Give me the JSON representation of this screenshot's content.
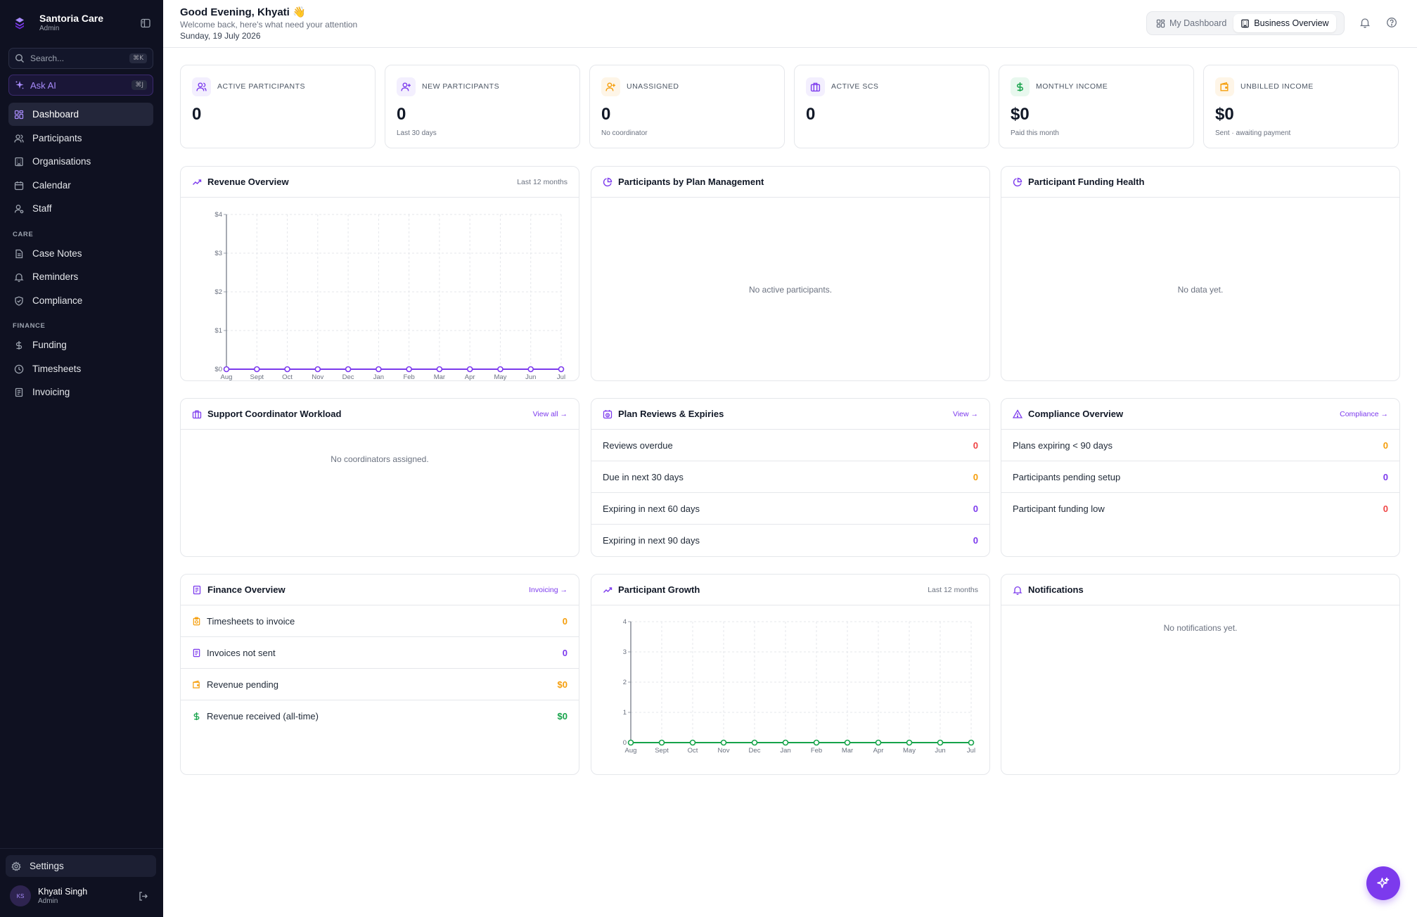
{
  "brand": {
    "name": "Santoria Care",
    "role": "Admin"
  },
  "search": {
    "placeholder": "Search...",
    "shortcut": "⌘K"
  },
  "ask_ai": {
    "label": "Ask AI",
    "shortcut": "⌘J"
  },
  "nav": {
    "main": [
      {
        "label": "Dashboard",
        "icon": "dashboard-icon"
      },
      {
        "label": "Participants",
        "icon": "users-icon"
      },
      {
        "label": "Organisations",
        "icon": "building-icon"
      },
      {
        "label": "Calendar",
        "icon": "calendar-icon"
      },
      {
        "label": "Staff",
        "icon": "staff-icon"
      }
    ],
    "care_title": "CARE",
    "care": [
      {
        "label": "Case Notes",
        "icon": "file-text-icon"
      },
      {
        "label": "Reminders",
        "icon": "bell-icon"
      },
      {
        "label": "Compliance",
        "icon": "shield-icon"
      }
    ],
    "finance_title": "FINANCE",
    "finance": [
      {
        "label": "Funding",
        "icon": "dollar-icon"
      },
      {
        "label": "Timesheets",
        "icon": "clock-icon"
      },
      {
        "label": "Invoicing",
        "icon": "receipt-icon"
      }
    ],
    "settings": "Settings"
  },
  "user": {
    "initials": "KS",
    "name": "Khyati Singh",
    "role": "Admin"
  },
  "header": {
    "greeting": "Good Evening, Khyati 👋",
    "subtitle": "Welcome back, here's what need your attention",
    "date": "Sunday, 19 July 2026",
    "toggle": [
      "My Dashboard",
      "Business Overview"
    ],
    "active_toggle": "Business Overview"
  },
  "stats": [
    {
      "label": "ACTIVE PARTICIPANTS",
      "value": "0",
      "note": "",
      "icon": "users-icon",
      "color": "#7c3aed",
      "bg": "#f3effe"
    },
    {
      "label": "NEW PARTICIPANTS",
      "value": "0",
      "note": "Last 30 days",
      "icon": "user-plus-icon",
      "color": "#7c3aed",
      "bg": "#f3effe"
    },
    {
      "label": "UNASSIGNED",
      "value": "0",
      "note": "No coordinator",
      "icon": "user-plus-icon",
      "color": "#f59e0b",
      "bg": "#fef5e7"
    },
    {
      "label": "ACTIVE SCS",
      "value": "0",
      "note": "",
      "icon": "briefcase-icon",
      "color": "#7c3aed",
      "bg": "#f3effe"
    },
    {
      "label": "MONTHLY INCOME",
      "value": "$0",
      "note": "Paid this month",
      "icon": "dollar-icon",
      "color": "#16a34a",
      "bg": "#e8f8ee"
    },
    {
      "label": "UNBILLED INCOME",
      "value": "$0",
      "note": "Sent · awaiting payment",
      "icon": "wallet-icon",
      "color": "#f59e0b",
      "bg": "#fef5e7"
    }
  ],
  "panels": {
    "revenue": {
      "title": "Revenue Overview",
      "right": "Last 12 months"
    },
    "plan_mgmt": {
      "title": "Participants by Plan Management",
      "empty": "No active participants."
    },
    "funding_health": {
      "title": "Participant Funding Health",
      "empty": "No data yet."
    },
    "workload": {
      "title": "Support Coordinator Workload",
      "link": "View all →",
      "empty": "No coordinators assigned."
    },
    "plan_reviews": {
      "title": "Plan Reviews & Expiries",
      "link": "View →",
      "rows": [
        {
          "label": "Reviews overdue",
          "value": "0",
          "color": "#ef4444"
        },
        {
          "label": "Due in next 30 days",
          "value": "0",
          "color": "#f59e0b"
        },
        {
          "label": "Expiring in next 60 days",
          "value": "0",
          "color": "#7c3aed"
        },
        {
          "label": "Expiring in next 90 days",
          "value": "0",
          "color": "#7c3aed"
        }
      ]
    },
    "compliance": {
      "title": "Compliance Overview",
      "link": "Compliance →",
      "rows": [
        {
          "label": "Plans expiring < 90 days",
          "value": "0",
          "color": "#f59e0b"
        },
        {
          "label": "Participants pending setup",
          "value": "0",
          "color": "#7c3aed"
        },
        {
          "label": "Participant funding low",
          "value": "0",
          "color": "#ef4444"
        }
      ]
    },
    "finance": {
      "title": "Finance Overview",
      "link": "Invoicing →",
      "rows": [
        {
          "label": "Timesheets to invoice",
          "value": "0",
          "color": "#f59e0b",
          "icon": "clipboard-icon",
          "icon_color": "#f59e0b"
        },
        {
          "label": "Invoices not sent",
          "value": "0",
          "color": "#7c3aed",
          "icon": "receipt-icon",
          "icon_color": "#7c3aed"
        },
        {
          "label": "Revenue pending",
          "value": "$0",
          "color": "#f59e0b",
          "icon": "wallet-icon",
          "icon_color": "#f59e0b"
        },
        {
          "label": "Revenue received (all-time)",
          "value": "$0",
          "color": "#16a34a",
          "icon": "dollar-icon",
          "icon_color": "#16a34a"
        }
      ]
    },
    "growth": {
      "title": "Participant Growth",
      "right": "Last 12 months"
    },
    "notifications": {
      "title": "Notifications",
      "empty": "No notifications yet."
    }
  },
  "chart_data": [
    {
      "type": "line",
      "title": "Revenue Overview",
      "x": [
        "Aug",
        "Sept",
        "Oct",
        "Nov",
        "Dec",
        "Jan",
        "Feb",
        "Mar",
        "Apr",
        "May",
        "Jun",
        "Jul"
      ],
      "series": [
        {
          "values": [
            0,
            0,
            0,
            0,
            0,
            0,
            0,
            0,
            0,
            0,
            0,
            0
          ],
          "color": "#7c3aed"
        }
      ],
      "yticks": [
        "$0",
        "$1",
        "$2",
        "$3",
        "$4"
      ],
      "ylim": [
        0,
        4
      ],
      "grid": true
    },
    {
      "type": "line",
      "title": "Participant Growth",
      "x": [
        "Aug",
        "Sept",
        "Oct",
        "Nov",
        "Dec",
        "Jan",
        "Feb",
        "Mar",
        "Apr",
        "May",
        "Jun",
        "Jul"
      ],
      "series": [
        {
          "values": [
            0,
            0,
            0,
            0,
            0,
            0,
            0,
            0,
            0,
            0,
            0,
            0
          ],
          "color": "#16a34a"
        }
      ],
      "yticks": [
        "0",
        "1",
        "2",
        "3",
        "4"
      ],
      "ylim": [
        0,
        4
      ],
      "grid": true
    }
  ]
}
